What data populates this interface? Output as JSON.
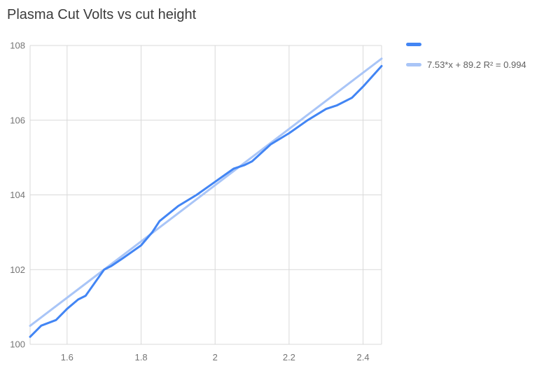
{
  "title": "Plasma Cut Volts vs cut height",
  "legend": {
    "series_label": "",
    "trendline_label": "7.53*x + 89.2 R² = 0.994"
  },
  "colors": {
    "series": "#4285f4",
    "trendline": "#a9c5f7",
    "grid": "#d9d9d9",
    "axis_label": "#757575",
    "legend_text": "#616161",
    "title_text": "#3c3c3c"
  },
  "chart_data": {
    "type": "line",
    "title": "Plasma Cut Volts vs cut height",
    "xlabel": "",
    "ylabel": "",
    "x_range": [
      1.5,
      2.45
    ],
    "y_range": [
      100,
      108
    ],
    "grid": true,
    "legend_position": "right",
    "x_ticks": [
      {
        "value": 1.6,
        "label": "1.6"
      },
      {
        "value": 1.8,
        "label": "1.8"
      },
      {
        "value": 2.0,
        "label": "2"
      },
      {
        "value": 2.2,
        "label": "2.2"
      },
      {
        "value": 2.4,
        "label": "2.4"
      }
    ],
    "y_ticks": [
      {
        "value": 100,
        "label": "100"
      },
      {
        "value": 102,
        "label": "102"
      },
      {
        "value": 104,
        "label": "104"
      },
      {
        "value": 106,
        "label": "106"
      },
      {
        "value": 108,
        "label": "108"
      }
    ],
    "series": [
      {
        "name": "",
        "points": [
          [
            1.5,
            100.2
          ],
          [
            1.53,
            100.5
          ],
          [
            1.57,
            100.65
          ],
          [
            1.6,
            100.95
          ],
          [
            1.63,
            101.2
          ],
          [
            1.65,
            101.3
          ],
          [
            1.7,
            102.0
          ],
          [
            1.72,
            102.1
          ],
          [
            1.75,
            102.3
          ],
          [
            1.8,
            102.65
          ],
          [
            1.83,
            103.0
          ],
          [
            1.85,
            103.3
          ],
          [
            1.9,
            103.7
          ],
          [
            1.95,
            104.0
          ],
          [
            2.0,
            104.35
          ],
          [
            2.05,
            104.7
          ],
          [
            2.08,
            104.8
          ],
          [
            2.1,
            104.9
          ],
          [
            2.15,
            105.35
          ],
          [
            2.2,
            105.65
          ],
          [
            2.25,
            106.0
          ],
          [
            2.3,
            106.3
          ],
          [
            2.33,
            106.4
          ],
          [
            2.37,
            106.6
          ],
          [
            2.4,
            106.9
          ],
          [
            2.45,
            107.45
          ]
        ]
      }
    ],
    "trendline": {
      "label": "7.53*x + 89.2 R² = 0.994",
      "slope": 7.53,
      "intercept": 89.2
    }
  }
}
